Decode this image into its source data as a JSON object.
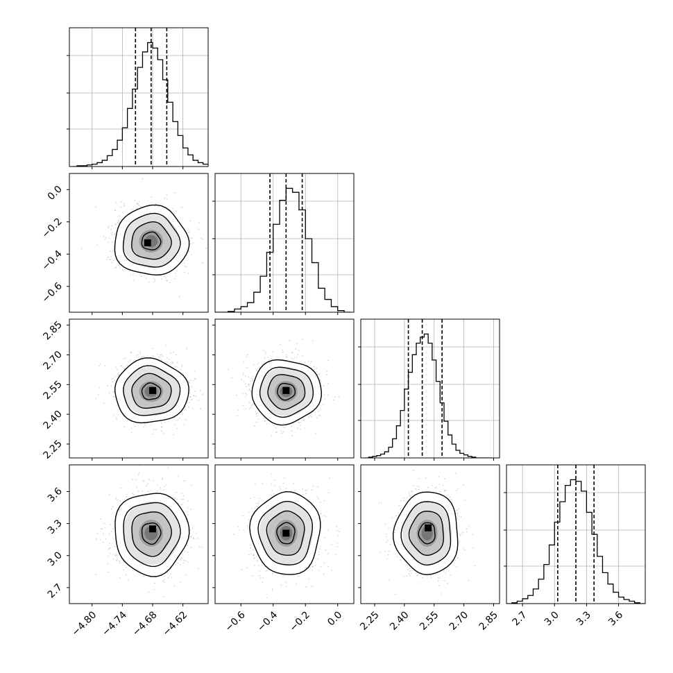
{
  "chart_data": {
    "type": "corner",
    "grid": true,
    "quantiles": [
      0.16,
      0.5,
      0.84
    ],
    "parameters": [
      {
        "range": [
          -4.845,
          -4.57
        ],
        "ticks": [
          "−4.80",
          "−4.74",
          "−4.68",
          "−4.62"
        ],
        "tick_values": [
          -4.8,
          -4.74,
          -4.68,
          -4.62
        ],
        "quantile_values": [
          -4.714,
          -4.683,
          -4.652
        ],
        "hist_bins": [
          -4.84,
          -4.83,
          -4.82,
          -4.81,
          -4.8,
          -4.79,
          -4.78,
          -4.77,
          -4.76,
          -4.75,
          -4.74,
          -4.73,
          -4.72,
          -4.71,
          -4.7,
          -4.69,
          -4.68,
          -4.67,
          -4.66,
          -4.65,
          -4.64,
          -4.63,
          -4.62,
          -4.61,
          -4.6,
          -4.59,
          -4.58,
          -4.57
        ],
        "hist_counts": [
          0,
          1,
          1,
          2,
          3,
          5,
          8,
          14,
          22,
          34,
          50,
          75,
          100,
          128,
          148,
          160,
          153,
          138,
          112,
          83,
          58,
          40,
          24,
          15,
          8,
          5,
          3
        ]
      },
      {
        "range": [
          -0.76,
          0.1
        ],
        "ticks": [
          "−0.6",
          "−0.4",
          "−0.2",
          "0.0"
        ],
        "tick_values": [
          -0.6,
          -0.4,
          -0.2,
          0.0
        ],
        "quantile_values": [
          -0.42,
          -0.32,
          -0.22
        ],
        "hist_bins": [
          -0.76,
          -0.72,
          -0.68,
          -0.64,
          -0.6,
          -0.56,
          -0.52,
          -0.48,
          -0.44,
          -0.4,
          -0.36,
          -0.32,
          -0.28,
          -0.24,
          -0.2,
          -0.16,
          -0.12,
          -0.08,
          -0.04,
          0.0,
          0.04,
          0.08
        ],
        "hist_counts": [
          0,
          0,
          1,
          4,
          7,
          12,
          25,
          45,
          75,
          110,
          140,
          155,
          150,
          128,
          92,
          62,
          30,
          16,
          7,
          2,
          0
        ]
      },
      {
        "range": [
          2.18,
          2.88
        ],
        "ticks": [
          "2.25",
          "2.40",
          "2.55",
          "2.70",
          "2.85"
        ],
        "tick_values": [
          2.25,
          2.4,
          2.55,
          2.7,
          2.85
        ],
        "quantile_values": [
          2.42,
          2.49,
          2.59
        ],
        "hist_bins": [
          2.2,
          2.22,
          2.24,
          2.26,
          2.28,
          2.3,
          2.32,
          2.34,
          2.36,
          2.38,
          2.4,
          2.42,
          2.44,
          2.46,
          2.48,
          2.5,
          2.52,
          2.54,
          2.56,
          2.58,
          2.6,
          2.62,
          2.64,
          2.66,
          2.68,
          2.7,
          2.72,
          2.74,
          2.76,
          2.78,
          2.8,
          2.82,
          2.84
        ],
        "hist_counts": [
          0,
          1,
          2,
          3,
          5,
          8,
          14,
          25,
          42,
          62,
          90,
          112,
          135,
          150,
          158,
          162,
          150,
          128,
          100,
          72,
          48,
          30,
          18,
          10,
          6,
          4,
          2,
          1,
          0,
          0,
          0,
          0
        ]
      },
      {
        "range": [
          2.55,
          3.85
        ],
        "ticks": [
          "2.7",
          "3.0",
          "3.3",
          "3.6"
        ],
        "tick_values": [
          2.7,
          3.0,
          3.3,
          3.6
        ],
        "quantile_values": [
          3.03,
          3.2,
          3.37
        ],
        "hist_bins": [
          2.55,
          2.6,
          2.65,
          2.7,
          2.75,
          2.8,
          2.85,
          2.9,
          2.95,
          3.0,
          3.05,
          3.1,
          3.15,
          3.2,
          3.25,
          3.3,
          3.35,
          3.4,
          3.45,
          3.5,
          3.55,
          3.6,
          3.65,
          3.7,
          3.75,
          3.8,
          3.85
        ],
        "hist_counts": [
          0,
          1,
          3,
          6,
          10,
          18,
          30,
          48,
          72,
          100,
          125,
          145,
          152,
          150,
          138,
          112,
          85,
          58,
          38,
          24,
          14,
          8,
          5,
          3,
          1,
          0
        ]
      }
    ],
    "pairs": [
      {
        "row": 1,
        "col": 0,
        "center": [
          -4.683,
          -0.32
        ],
        "spread": [
          0.034,
          0.1
        ],
        "density_peak": [
          -4.69,
          -0.33
        ]
      },
      {
        "row": 2,
        "col": 0,
        "center": [
          -4.683,
          2.515
        ],
        "spread": [
          0.034,
          0.075
        ],
        "density_peak": [
          -4.68,
          2.52
        ]
      },
      {
        "row": 2,
        "col": 1,
        "center": [
          -0.32,
          2.515
        ],
        "spread": [
          0.1,
          0.075
        ],
        "density_peak": [
          -0.32,
          2.52
        ]
      },
      {
        "row": 3,
        "col": 0,
        "center": [
          -4.683,
          3.21
        ],
        "spread": [
          0.034,
          0.18
        ],
        "density_peak": [
          -4.68,
          3.25
        ]
      },
      {
        "row": 3,
        "col": 1,
        "center": [
          -0.32,
          3.21
        ],
        "spread": [
          0.1,
          0.18
        ],
        "density_peak": [
          -0.32,
          3.21
        ]
      },
      {
        "row": 3,
        "col": 2,
        "center": [
          2.515,
          3.21
        ],
        "spread": [
          0.075,
          0.18
        ],
        "density_peak": [
          2.52,
          3.26
        ]
      }
    ]
  }
}
